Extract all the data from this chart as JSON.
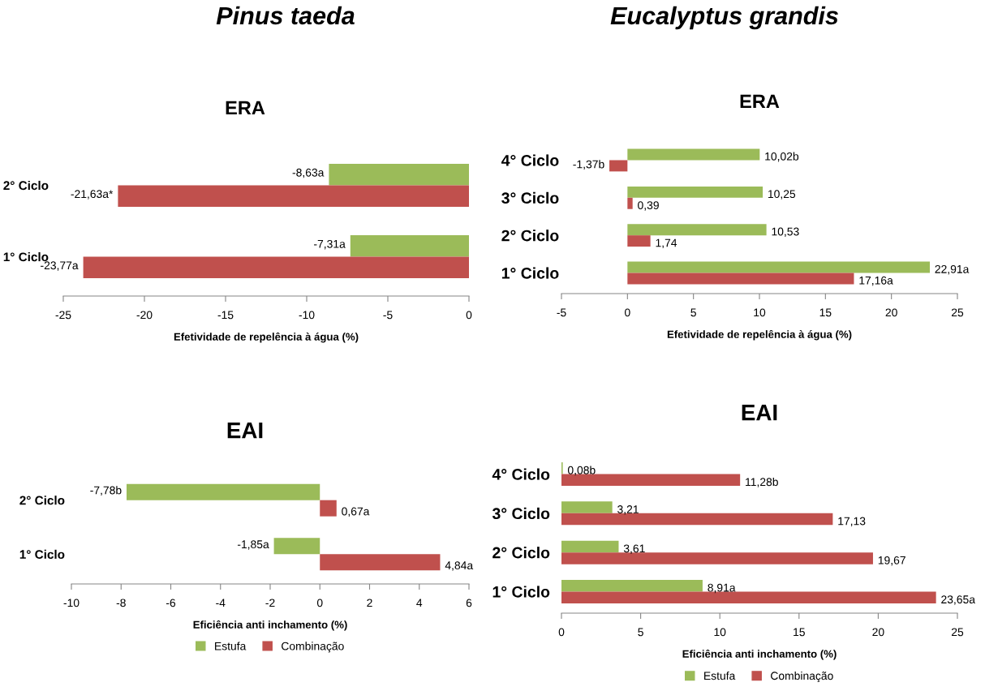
{
  "chart_data": [
    {
      "type": "bar",
      "orientation": "horizontal",
      "subtitle": "Pinus taeda",
      "title": "ERA",
      "xlabel": "Efetividade de repelência à água (%)",
      "categories": [
        "2° Ciclo",
        "1° Ciclo"
      ],
      "xlim": [
        -25,
        0
      ],
      "xticks": [
        -25,
        -20,
        -15,
        -10,
        -5,
        0
      ],
      "grid": false,
      "legend": false,
      "series": [
        {
          "color": "#9bbb59",
          "values": [
            -8.63,
            -7.31
          ],
          "value_labels": [
            "-8,63a",
            "-7,31a"
          ]
        },
        {
          "color": "#c0504d",
          "values": [
            -21.63,
            -23.77
          ],
          "value_labels": [
            "-21,63a*",
            "-23,77a"
          ]
        }
      ]
    },
    {
      "type": "bar",
      "orientation": "horizontal",
      "subtitle": "Eucalyptus grandis",
      "title": "ERA",
      "xlabel": "Efetividade de repelência à água (%)",
      "categories": [
        "4° Ciclo",
        "3° Ciclo",
        "2° Ciclo",
        "1° Ciclo"
      ],
      "xlim": [
        -5,
        25
      ],
      "xticks": [
        -5,
        0,
        5,
        10,
        15,
        20,
        25
      ],
      "grid": false,
      "legend": false,
      "series": [
        {
          "color": "#9bbb59",
          "values": [
            10.02,
            10.25,
            10.53,
            22.91
          ],
          "value_labels": [
            "10,02b",
            "10,25",
            "10,53",
            "22,91a"
          ]
        },
        {
          "color": "#c0504d",
          "values": [
            -1.37,
            0.39,
            1.74,
            17.16
          ],
          "value_labels": [
            "-1,37b",
            "0,39",
            "1,74",
            "17,16a"
          ]
        }
      ]
    },
    {
      "type": "bar",
      "orientation": "horizontal",
      "title": "EAI",
      "xlabel": "Eficiência anti inchamento (%)",
      "categories": [
        "2° Ciclo",
        "1° Ciclo"
      ],
      "xlim": [
        -10,
        6
      ],
      "xticks": [
        -10,
        -8,
        -6,
        -4,
        -2,
        0,
        2,
        4,
        6
      ],
      "grid": false,
      "legend": "bottom",
      "series": [
        {
          "name": "Estufa",
          "color": "#9bbb59",
          "values": [
            -7.78,
            -1.85
          ],
          "value_labels": [
            "-7,78b",
            "-1,85a"
          ]
        },
        {
          "name": "Combinação",
          "color": "#c0504d",
          "values": [
            0.67,
            4.84
          ],
          "value_labels": [
            "0,67a",
            "4,84a"
          ]
        }
      ]
    },
    {
      "type": "bar",
      "orientation": "horizontal",
      "title": "EAI",
      "xlabel": "Eficiência anti inchamento (%)",
      "categories": [
        "4° Ciclo",
        "3° Ciclo",
        "2° Ciclo",
        "1° Ciclo"
      ],
      "xlim": [
        0,
        25
      ],
      "xticks": [
        0,
        5,
        10,
        15,
        20,
        25
      ],
      "grid": false,
      "legend": "bottom",
      "series": [
        {
          "name": "Estufa",
          "color": "#9bbb59",
          "values": [
            0.08,
            3.21,
            3.61,
            8.91
          ],
          "value_labels": [
            "0,08b",
            "3,21",
            "3,61",
            "8,91a"
          ]
        },
        {
          "name": "Combinação",
          "color": "#c0504d",
          "values": [
            11.28,
            17.13,
            19.67,
            23.65
          ],
          "value_labels": [
            "11,28b",
            "17,13",
            "19,67",
            "23,65a"
          ]
        }
      ]
    }
  ]
}
